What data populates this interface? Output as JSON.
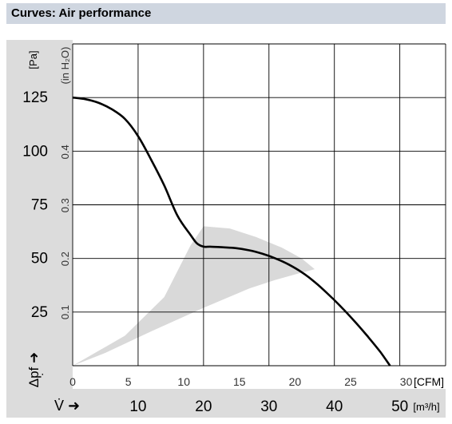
{
  "header": {
    "title": "Curves: Air performance"
  },
  "chart_data": {
    "type": "line",
    "axes": {
      "pa_label": "[Pa]",
      "pa_ticks": [
        25,
        50,
        75,
        100,
        125
      ],
      "inh2o_label": "(in H₂O)",
      "inh2o_ticks": [
        "0.1",
        "0.2",
        "0.3",
        "0.4"
      ],
      "y_symbol": "Δp̣f ➜",
      "cfm_label": "[CFM]",
      "cfm_ticks": [
        "0",
        "5",
        "10",
        "15",
        "20",
        "25",
        "30"
      ],
      "m3h_symbol": "V̇ ➜",
      "m3h_label": "[m³/h]",
      "m3h_ticks": [
        "10",
        "20",
        "30",
        "40",
        "50"
      ],
      "xlim_m3h": [
        0,
        57
      ],
      "ylim_pa": [
        0,
        150
      ]
    },
    "series": [
      {
        "points_m3h_pa": [
          [
            0,
            125
          ],
          [
            2,
            124.2
          ],
          [
            4,
            122.5
          ],
          [
            6,
            119.5
          ],
          [
            8,
            115
          ],
          [
            10,
            107
          ],
          [
            12,
            96
          ],
          [
            14,
            84
          ],
          [
            16,
            70
          ],
          [
            18,
            61
          ],
          [
            19,
            57
          ],
          [
            20,
            55.5
          ],
          [
            21,
            55.5
          ],
          [
            23,
            55.2
          ],
          [
            25,
            54.8
          ],
          [
            27,
            53.8
          ],
          [
            29,
            52.2
          ],
          [
            31,
            50
          ],
          [
            33,
            47.2
          ],
          [
            35,
            43.6
          ],
          [
            37,
            39
          ],
          [
            39,
            33.5
          ],
          [
            41,
            27.5
          ],
          [
            43,
            21
          ],
          [
            45,
            14
          ],
          [
            47,
            6.5
          ],
          [
            48.5,
            0
          ]
        ]
      }
    ],
    "operating_area_m3h_pa": [
      [
        0,
        0
      ],
      [
        8,
        14
      ],
      [
        14,
        32
      ],
      [
        18,
        56
      ],
      [
        20,
        65
      ],
      [
        24,
        64
      ],
      [
        28,
        60
      ],
      [
        32,
        55
      ],
      [
        35,
        50
      ],
      [
        37,
        45
      ],
      [
        34.5,
        43
      ],
      [
        31,
        40
      ],
      [
        27,
        36
      ],
      [
        20,
        27
      ],
      [
        12,
        16
      ],
      [
        5,
        6
      ]
    ],
    "grid": true,
    "colors": {
      "curve": "#000000",
      "area": "#d9d9d9",
      "axis_band": "#dcdcdc",
      "grid": "#000000"
    }
  }
}
